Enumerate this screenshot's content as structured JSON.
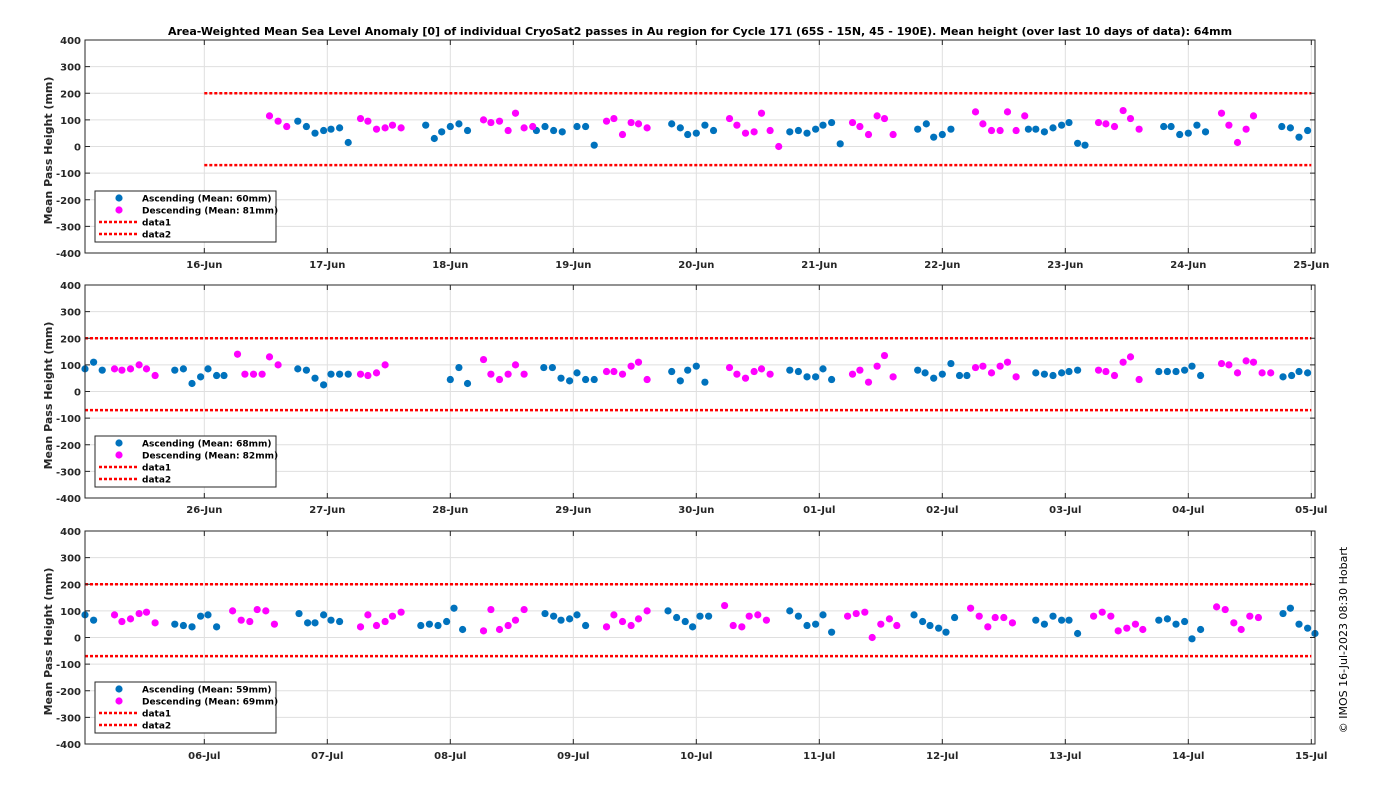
{
  "figure": {
    "title": "Area-Weighted Mean Sea Level Anomaly [0] of individual CryoSat2 passes in Au region for Cycle 171 (65S - 15N, 45 - 190E). Mean height (over last 10 days of data): 64mm",
    "credit": "© IMOS 16-Jul-2023 08:30 Hobart"
  },
  "colors": {
    "ascending": "#0072BD",
    "descending": "#FF00FF",
    "dashed": "#FF0000",
    "grid": "#DFDFDF"
  },
  "chart_data": [
    {
      "type": "scatter",
      "ylabel": "Mean Pass Height (mm)",
      "xlim": [
        15.03,
        25.03
      ],
      "ylim": [
        -400,
        400
      ],
      "yticks": [
        -400,
        -300,
        -200,
        -100,
        0,
        100,
        200,
        300,
        400
      ],
      "xticks": [
        16,
        17,
        18,
        19,
        20,
        21,
        22,
        23,
        24,
        25
      ],
      "xtick_labels": [
        "16-Jun",
        "17-Jun",
        "18-Jun",
        "19-Jun",
        "20-Jun",
        "21-Jun",
        "22-Jun",
        "23-Jun",
        "24-Jun",
        "25-Jun"
      ],
      "grid": true,
      "legend_position": "bottom-left",
      "legend": [
        "Ascending (Mean: 60mm)",
        "Descending (Mean: 81mm)",
        "data1",
        "data2"
      ],
      "lines": {
        "data1": {
          "x": [
            16.0,
            25.0
          ],
          "y": 200
        },
        "data2": {
          "x": [
            16.0,
            25.0
          ],
          "y": -70
        }
      },
      "series": [
        {
          "name": "Ascending (Mean: 60mm)",
          "x": [
            16.76,
            16.83,
            16.9,
            16.97,
            17.03,
            17.1,
            17.17,
            17.8,
            17.87,
            17.93,
            18.0,
            18.07,
            18.14,
            18.7,
            18.77,
            18.84,
            18.91,
            19.03,
            19.1,
            19.17,
            19.8,
            19.87,
            19.93,
            20.0,
            20.07,
            20.14,
            20.76,
            20.83,
            20.9,
            20.97,
            21.03,
            21.1,
            21.17,
            21.8,
            21.87,
            21.93,
            22.0,
            22.07,
            22.7,
            22.76,
            22.83,
            22.9,
            22.97,
            23.03,
            23.1,
            23.16,
            23.8,
            23.86,
            23.93,
            24.0,
            24.07,
            24.14,
            24.76,
            24.83,
            24.9,
            24.97
          ],
          "y": [
            95,
            75,
            50,
            60,
            65,
            70,
            15,
            80,
            30,
            55,
            75,
            85,
            60,
            60,
            75,
            60,
            55,
            75,
            75,
            5,
            85,
            70,
            45,
            50,
            80,
            60,
            55,
            60,
            50,
            65,
            80,
            90,
            10,
            65,
            85,
            35,
            45,
            65,
            65,
            65,
            55,
            70,
            80,
            90,
            12,
            5,
            75,
            75,
            45,
            50,
            80,
            55,
            75,
            70,
            35,
            60
          ]
        },
        {
          "name": "Descending (Mean: 81mm)",
          "x": [
            16.53,
            16.6,
            16.67,
            17.27,
            17.33,
            17.4,
            17.47,
            17.53,
            17.6,
            18.27,
            18.33,
            18.4,
            18.47,
            18.53,
            18.6,
            18.67,
            19.27,
            19.33,
            19.4,
            19.47,
            19.53,
            19.6,
            20.27,
            20.33,
            20.4,
            20.47,
            20.53,
            20.6,
            20.67,
            21.27,
            21.33,
            21.4,
            21.47,
            21.53,
            21.6,
            22.27,
            22.33,
            22.4,
            22.47,
            22.53,
            22.6,
            22.67,
            23.27,
            23.33,
            23.4,
            23.47,
            23.53,
            23.6,
            24.27,
            24.33,
            24.4,
            24.47,
            24.53
          ],
          "y": [
            115,
            95,
            75,
            105,
            95,
            65,
            70,
            80,
            70,
            100,
            90,
            95,
            60,
            125,
            70,
            75,
            95,
            105,
            45,
            90,
            85,
            70,
            105,
            80,
            50,
            55,
            125,
            60,
            0,
            90,
            75,
            45,
            115,
            105,
            45,
            130,
            85,
            60,
            60,
            130,
            60,
            115,
            90,
            85,
            75,
            135,
            105,
            65,
            125,
            80,
            15,
            65,
            115
          ]
        }
      ]
    },
    {
      "type": "scatter",
      "ylabel": "Mean Pass Height (mm)",
      "xlim": [
        25.03,
        35.03
      ],
      "ylim": [
        -400,
        400
      ],
      "yticks": [
        -400,
        -300,
        -200,
        -100,
        0,
        100,
        200,
        300,
        400
      ],
      "xticks": [
        26,
        27,
        28,
        29,
        30,
        31,
        32,
        33,
        34,
        35
      ],
      "xtick_labels": [
        "26-Jun",
        "27-Jun",
        "28-Jun",
        "29-Jun",
        "30-Jun",
        "01-Jul",
        "02-Jul",
        "03-Jul",
        "04-Jul",
        "05-Jul"
      ],
      "grid": true,
      "legend_position": "bottom-left",
      "legend": [
        "Ascending (Mean: 68mm)",
        "Descending (Mean: 82mm)",
        "data1",
        "data2"
      ],
      "lines": {
        "data1": {
          "x": [
            25.03,
            35.0
          ],
          "y": 200
        },
        "data2": {
          "x": [
            25.03,
            35.0
          ],
          "y": -70
        }
      },
      "series": [
        {
          "name": "Ascending (Mean: 68mm)",
          "x": [
            25.03,
            25.1,
            25.17,
            25.76,
            25.83,
            25.9,
            25.97,
            26.03,
            26.1,
            26.16,
            26.76,
            26.83,
            26.9,
            26.97,
            27.03,
            27.1,
            27.17,
            28.0,
            28.07,
            28.14,
            28.76,
            28.83,
            28.9,
            28.97,
            29.03,
            29.1,
            29.17,
            29.8,
            29.87,
            29.93,
            30.0,
            30.07,
            30.76,
            30.83,
            30.9,
            30.97,
            31.03,
            31.1,
            31.8,
            31.86,
            31.93,
            32.0,
            32.07,
            32.14,
            32.2,
            32.76,
            32.83,
            32.9,
            32.97,
            33.03,
            33.1,
            33.76,
            33.83,
            33.9,
            33.97,
            34.03,
            34.1,
            34.77,
            34.84,
            34.9,
            34.97
          ],
          "y": [
            85,
            110,
            80,
            80,
            85,
            30,
            55,
            85,
            60,
            60,
            85,
            80,
            50,
            25,
            65,
            65,
            65,
            45,
            90,
            30,
            90,
            90,
            50,
            40,
            70,
            45,
            45,
            75,
            40,
            80,
            95,
            35,
            80,
            75,
            55,
            55,
            85,
            45,
            80,
            70,
            50,
            65,
            105,
            60,
            60,
            70,
            65,
            60,
            70,
            75,
            80,
            75,
            75,
            75,
            80,
            95,
            60,
            55,
            60,
            75,
            70
          ]
        },
        {
          "name": "Descending (Mean: 82mm)",
          "x": [
            25.27,
            25.33,
            25.4,
            25.47,
            25.53,
            25.6,
            26.27,
            26.33,
            26.4,
            26.47,
            26.53,
            26.6,
            27.27,
            27.33,
            27.4,
            27.47,
            28.27,
            28.33,
            28.4,
            28.47,
            28.53,
            28.6,
            29.27,
            29.33,
            29.4,
            29.47,
            29.53,
            29.6,
            30.27,
            30.33,
            30.4,
            30.47,
            30.53,
            30.6,
            31.27,
            31.33,
            31.4,
            31.47,
            31.53,
            31.6,
            32.27,
            32.33,
            32.4,
            32.47,
            32.53,
            32.6,
            33.27,
            33.33,
            33.4,
            33.47,
            33.53,
            33.6,
            34.27,
            34.33,
            34.4,
            34.47,
            34.53,
            34.6,
            34.67
          ],
          "y": [
            85,
            80,
            85,
            100,
            85,
            60,
            140,
            65,
            65,
            65,
            130,
            100,
            65,
            60,
            70,
            100,
            120,
            65,
            45,
            65,
            100,
            65,
            75,
            75,
            65,
            95,
            110,
            45,
            90,
            65,
            50,
            75,
            85,
            65,
            65,
            80,
            35,
            95,
            135,
            55,
            90,
            95,
            70,
            95,
            110,
            55,
            80,
            75,
            60,
            110,
            130,
            45,
            105,
            100,
            70,
            115,
            110,
            70,
            70
          ]
        }
      ]
    },
    {
      "type": "scatter",
      "ylabel": "Mean Pass Height (mm)",
      "xlim": [
        35.03,
        45.03
      ],
      "ylim": [
        -400,
        400
      ],
      "yticks": [
        -400,
        -300,
        -200,
        -100,
        0,
        100,
        200,
        300,
        400
      ],
      "xticks": [
        36,
        37,
        38,
        39,
        40,
        41,
        42,
        43,
        44,
        45
      ],
      "xtick_labels": [
        "06-Jul",
        "07-Jul",
        "08-Jul",
        "09-Jul",
        "10-Jul",
        "11-Jul",
        "12-Jul",
        "13-Jul",
        "14-Jul",
        "15-Jul"
      ],
      "grid": true,
      "legend_position": "bottom-left",
      "legend": [
        "Ascending (Mean: 59mm)",
        "Descending (Mean: 69mm)",
        "data1",
        "data2"
      ],
      "lines": {
        "data1": {
          "x": [
            35.03,
            45.0
          ],
          "y": 200
        },
        "data2": {
          "x": [
            35.03,
            45.0
          ],
          "y": -70
        }
      },
      "series": [
        {
          "name": "Ascending (Mean: 59mm)",
          "x": [
            35.03,
            35.1,
            35.76,
            35.83,
            35.9,
            35.97,
            36.03,
            36.1,
            36.77,
            36.84,
            36.9,
            36.97,
            37.03,
            37.1,
            37.76,
            37.83,
            37.9,
            37.97,
            38.03,
            38.1,
            38.77,
            38.84,
            38.9,
            38.97,
            39.03,
            39.1,
            39.77,
            39.84,
            39.91,
            39.97,
            40.03,
            40.1,
            40.76,
            40.83,
            40.9,
            40.97,
            41.03,
            41.1,
            41.77,
            41.84,
            41.9,
            41.97,
            42.03,
            42.1,
            42.76,
            42.83,
            42.9,
            42.97,
            43.03,
            43.1,
            43.76,
            43.83,
            43.9,
            43.97,
            44.03,
            44.1,
            44.77,
            44.83,
            44.9,
            44.97,
            45.03
          ],
          "y": [
            85,
            65,
            50,
            45,
            40,
            80,
            85,
            40,
            90,
            55,
            55,
            85,
            65,
            60,
            45,
            50,
            45,
            60,
            110,
            30,
            90,
            80,
            65,
            70,
            85,
            45,
            100,
            75,
            60,
            40,
            80,
            80,
            100,
            80,
            45,
            50,
            85,
            20,
            85,
            60,
            45,
            35,
            20,
            75,
            65,
            50,
            80,
            65,
            65,
            15,
            65,
            70,
            50,
            60,
            -5,
            30,
            90,
            110,
            50,
            35,
            15
          ]
        },
        {
          "name": "Descending (Mean: 69mm)",
          "x": [
            35.27,
            35.33,
            35.4,
            35.47,
            35.53,
            35.6,
            36.23,
            36.3,
            36.37,
            36.43,
            36.5,
            36.57,
            37.27,
            37.33,
            37.4,
            37.47,
            37.53,
            37.6,
            38.27,
            38.33,
            38.4,
            38.47,
            38.53,
            38.6,
            39.27,
            39.33,
            39.4,
            39.47,
            39.53,
            39.6,
            40.23,
            40.3,
            40.37,
            40.43,
            40.5,
            40.57,
            41.23,
            41.3,
            41.37,
            41.43,
            41.5,
            41.57,
            41.63,
            42.23,
            42.3,
            42.37,
            42.43,
            42.5,
            42.57,
            43.23,
            43.3,
            43.37,
            43.43,
            43.5,
            43.57,
            43.63,
            44.23,
            44.3,
            44.37,
            44.43,
            44.5,
            44.57
          ],
          "y": [
            85,
            60,
            70,
            90,
            95,
            55,
            100,
            65,
            60,
            105,
            100,
            50,
            40,
            85,
            45,
            60,
            80,
            95,
            25,
            105,
            30,
            45,
            65,
            105,
            40,
            85,
            60,
            45,
            70,
            100,
            120,
            45,
            40,
            80,
            85,
            65,
            80,
            90,
            95,
            0,
            50,
            70,
            45,
            110,
            80,
            40,
            75,
            75,
            55,
            80,
            95,
            80,
            25,
            35,
            50,
            30,
            115,
            105,
            55,
            30,
            80,
            75
          ]
        }
      ]
    }
  ]
}
